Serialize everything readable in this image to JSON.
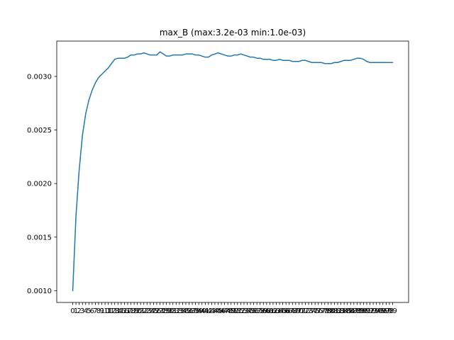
{
  "chart_data": {
    "type": "line",
    "title": "max_B (max:3.2e-03 min:1.0e-03)",
    "xlabel": "",
    "ylabel": "",
    "x_tick_labels": [
      "0",
      "1",
      "2",
      "3",
      "4",
      "5",
      "6",
      "7",
      "8",
      "9",
      "10",
      "11",
      "12",
      "13",
      "14",
      "15",
      "16",
      "17",
      "18",
      "19",
      "20",
      "21",
      "22",
      "23",
      "24",
      "25",
      "26",
      "27",
      "28",
      "29",
      "30",
      "31",
      "32",
      "33",
      "34",
      "35",
      "36",
      "37",
      "38",
      "39",
      "40",
      "41",
      "42",
      "43",
      "44",
      "45",
      "46",
      "47",
      "48",
      "49",
      "50",
      "51",
      "52",
      "53",
      "54",
      "55",
      "56",
      "57",
      "58",
      "59",
      "60",
      "61",
      "62",
      "63",
      "64",
      "65",
      "66",
      "67",
      "68",
      "69",
      "70",
      "71",
      "72",
      "73",
      "74",
      "75",
      "76",
      "77",
      "78",
      "79",
      "80",
      "81",
      "82",
      "83",
      "84",
      "85",
      "86",
      "87",
      "88",
      "89",
      "90",
      "91",
      "92",
      "93",
      "94",
      "95",
      "96",
      "97",
      "98",
      "99"
    ],
    "y_ticks": [
      0.001,
      0.0015,
      0.002,
      0.0025,
      0.003
    ],
    "y_tick_labels": [
      "0.0010",
      "0.0015",
      "0.0020",
      "0.0025",
      "0.0030"
    ],
    "xlim": [
      -4.95,
      103.95
    ],
    "ylim": [
      0.00089,
      0.00333
    ],
    "grid": false,
    "line_color": "#1f77b4",
    "series": [
      {
        "values": [
          0.001,
          0.0017,
          0.00213,
          0.00245,
          0.00265,
          0.00278,
          0.00287,
          0.00294,
          0.00299,
          0.00302,
          0.00305,
          0.00308,
          0.00312,
          0.00316,
          0.00317,
          0.00317,
          0.00317,
          0.00318,
          0.0032,
          0.0032,
          0.00321,
          0.00321,
          0.00322,
          0.00321,
          0.0032,
          0.0032,
          0.0032,
          0.00323,
          0.00321,
          0.00319,
          0.00319,
          0.0032,
          0.0032,
          0.0032,
          0.0032,
          0.00321,
          0.00321,
          0.00321,
          0.0032,
          0.0032,
          0.00319,
          0.00318,
          0.00318,
          0.0032,
          0.00321,
          0.00322,
          0.00321,
          0.0032,
          0.00319,
          0.00319,
          0.0032,
          0.0032,
          0.00321,
          0.0032,
          0.00319,
          0.00318,
          0.00318,
          0.00317,
          0.00317,
          0.00316,
          0.00316,
          0.00316,
          0.00315,
          0.00315,
          0.00316,
          0.00315,
          0.00315,
          0.00315,
          0.00314,
          0.00314,
          0.00314,
          0.00315,
          0.00315,
          0.00314,
          0.00313,
          0.00313,
          0.00313,
          0.00313,
          0.00312,
          0.00312,
          0.00312,
          0.00313,
          0.00313,
          0.00314,
          0.00315,
          0.00315,
          0.00315,
          0.00316,
          0.00317,
          0.00317,
          0.00316,
          0.00314,
          0.00313,
          0.00313,
          0.00313,
          0.00313,
          0.00313,
          0.00313,
          0.00313,
          0.00313
        ]
      }
    ]
  }
}
